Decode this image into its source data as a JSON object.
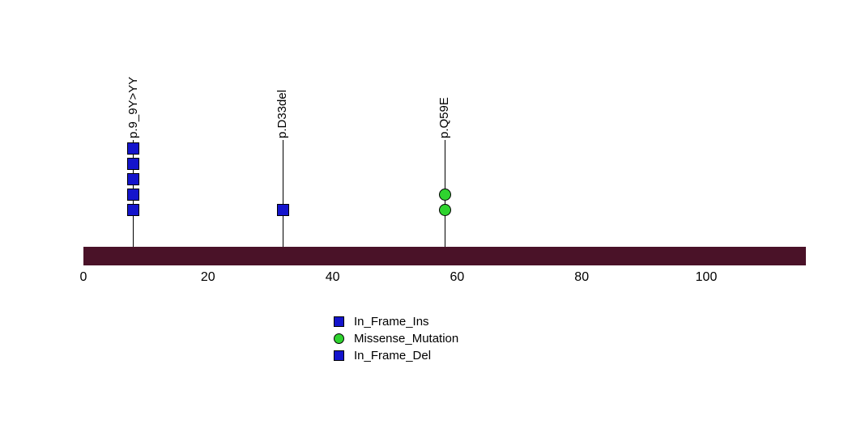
{
  "chart_data": {
    "type": "lollipop",
    "title": "",
    "xlabel": "",
    "ylabel": "",
    "xlim": [
      0,
      116
    ],
    "xticks": [
      0,
      20,
      40,
      60,
      80,
      100
    ],
    "grid": false,
    "legend_position": "bottom-center",
    "backbone_color": "#4A1228",
    "stem_color": "#000000",
    "colors": {
      "in_frame": "#1414CC",
      "missense": "#2FD32F"
    },
    "mutations": [
      {
        "label": "p.9_9Y>YY",
        "position": 8,
        "count": 5,
        "marker": "square",
        "color": "#1414CC",
        "type": "In_Frame_Ins"
      },
      {
        "label": "p.D33del",
        "position": 32,
        "count": 1,
        "marker": "square",
        "color": "#1414CC",
        "type": "In_Frame_Del"
      },
      {
        "label": "p.Q59E",
        "position": 58,
        "count": 2,
        "marker": "circle",
        "color": "#2FD32F",
        "type": "Missense_Mutation"
      }
    ],
    "legend": [
      {
        "label": "In_Frame_Ins",
        "marker": "square",
        "color": "#1414CC"
      },
      {
        "label": "Missense_Mutation",
        "marker": "circle",
        "color": "#2FD32F"
      },
      {
        "label": "In_Frame_Del",
        "marker": "square",
        "color": "#1414CC"
      }
    ]
  }
}
